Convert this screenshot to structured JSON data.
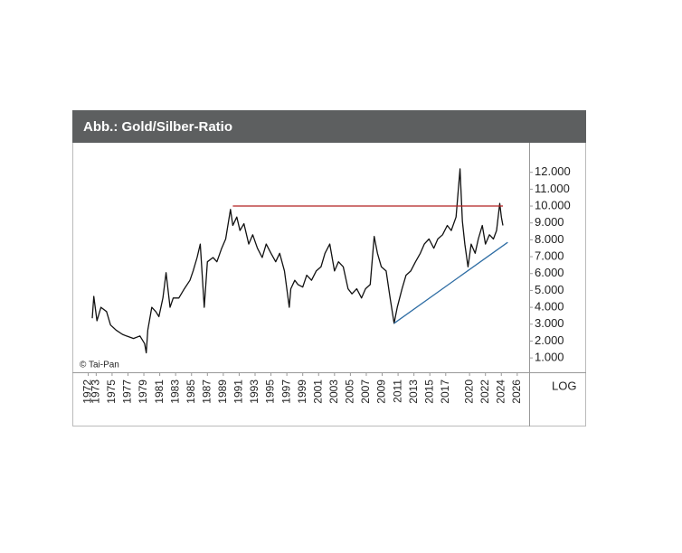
{
  "chart_data": {
    "type": "line",
    "title": "Abb.: Gold/Silber-Ratio",
    "source": "© Tai-Pan",
    "axis_note": "LOG",
    "color": "#111111",
    "x": [
      1972.5,
      1972.7,
      1973.1,
      1973.6,
      1974.3,
      1974.8,
      1975.5,
      1976.3,
      1976.8,
      1977.7,
      1978.5,
      1979.1,
      1979.3,
      1979.5,
      1980.0,
      1980.5,
      1980.9,
      1981.4,
      1981.8,
      1982.3,
      1982.7,
      1983.4,
      1984.1,
      1984.8,
      1985.2,
      1985.7,
      1986.1,
      1986.6,
      1987.0,
      1987.7,
      1988.2,
      1988.8,
      1989.3,
      1989.9,
      1990.2,
      1990.7,
      1991.1,
      1991.6,
      1992.2,
      1992.7,
      1993.3,
      1993.9,
      1994.4,
      1995.0,
      1995.6,
      1996.1,
      1996.7,
      1997.3,
      1997.5,
      1998.0,
      1998.4,
      1999.0,
      1999.5,
      2000.1,
      2000.7,
      2001.3,
      2001.8,
      2002.4,
      2003.0,
      2003.5,
      2004.1,
      2004.7,
      2005.2,
      2005.8,
      2006.4,
      2006.9,
      2007.5,
      2008.0,
      2008.4,
      2008.9,
      2009.5,
      2010.0,
      2010.5,
      2010.9,
      2011.5,
      2012.0,
      2012.6,
      2013.2,
      2013.8,
      2014.3,
      2014.9,
      2015.5,
      2016.0,
      2016.6,
      2017.2,
      2017.7,
      2018.3,
      2018.8,
      2019.1,
      2019.4,
      2019.8,
      2020.2,
      2020.7,
      2021.1,
      2021.6,
      2022.0,
      2022.5,
      2023.0,
      2023.4,
      2023.8,
      2024.0,
      2024.2
    ],
    "values": [
      3350,
      4650,
      3200,
      4000,
      3750,
      2950,
      2650,
      2400,
      2300,
      2150,
      2300,
      1850,
      1300,
      2650,
      4000,
      3750,
      3450,
      4550,
      6050,
      4000,
      4550,
      4550,
      5100,
      5600,
      6150,
      6950,
      7750,
      4000,
      6700,
      6950,
      6700,
      7500,
      8050,
      9800,
      8850,
      9350,
      8550,
      8950,
      7750,
      8300,
      7500,
      6950,
      7750,
      7200,
      6700,
      7200,
      6150,
      4000,
      5100,
      5600,
      5350,
      5200,
      5900,
      5600,
      6150,
      6400,
      7200,
      7750,
      6150,
      6700,
      6400,
      5100,
      4800,
      5100,
      4550,
      5100,
      5350,
      8200,
      7200,
      6400,
      6150,
      4550,
      3050,
      4000,
      5100,
      5900,
      6150,
      6700,
      7200,
      7750,
      8050,
      7500,
      8050,
      8300,
      8850,
      8550,
      9350,
      12200,
      9100,
      7750,
      6400,
      7750,
      7200,
      8050,
      8850,
      7750,
      8300,
      8050,
      8550,
      10150,
      9350,
      8850
    ],
    "lines": [
      {
        "color": "#b22222",
        "x": [
          1990.2,
          2024.2
        ],
        "values": [
          10000,
          10000
        ]
      },
      {
        "color": "#2e6da4",
        "x": [
          2010.5,
          2024.8
        ],
        "values": [
          3050,
          7850
        ]
      }
    ],
    "xlim": [
      1970,
      2027.5
    ],
    "xticks": [
      1972,
      1973,
      1975,
      1977,
      1979,
      1981,
      1983,
      1985,
      1987,
      1989,
      1991,
      1993,
      1995,
      1997,
      1999,
      2001,
      2003,
      2005,
      2007,
      2009,
      2011,
      2013,
      2015,
      2017,
      2020,
      2022,
      2024,
      2026
    ],
    "ylim": [
      150,
      13750
    ],
    "yticks": [
      {
        "value": 1000,
        "label": "1.000"
      },
      {
        "value": 2000,
        "label": "2.000"
      },
      {
        "value": 3000,
        "label": "3.000"
      },
      {
        "value": 4000,
        "label": "4.000"
      },
      {
        "value": 5000,
        "label": "5.000"
      },
      {
        "value": 6000,
        "label": "6.000"
      },
      {
        "value": 7000,
        "label": "7.000"
      },
      {
        "value": 8000,
        "label": "8.000"
      },
      {
        "value": 9000,
        "label": "9.000"
      },
      {
        "value": 10000,
        "label": "10.000"
      },
      {
        "value": 11000,
        "label": "11.000"
      },
      {
        "value": 12000,
        "label": "12.000"
      }
    ]
  }
}
